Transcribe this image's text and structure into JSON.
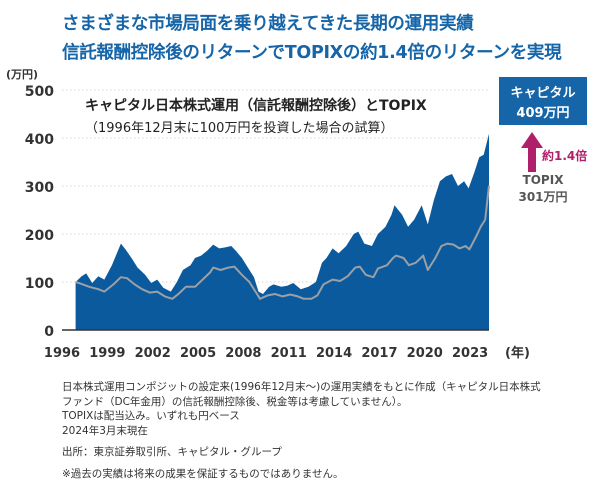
{
  "headline": {
    "line1": "さまざまな市場局面を乗り越えてきた長期の運用実績",
    "line2": "信託報酬控除後のリターンでTOPIXの約1.4倍のリターンを実現"
  },
  "chart_data": {
    "type": "area",
    "title": "キャピタル日本株式運用（信託報酬控除後）とTOPIX",
    "subtitle": "（1996年12月末に100万円を投資した場合の試算）",
    "ylabel": "(万円)",
    "xlabel": "(年)",
    "ylim": [
      0,
      500
    ],
    "yticks": [
      0,
      100,
      200,
      300,
      400,
      500
    ],
    "xlim": [
      1996,
      2024.25
    ],
    "xticks": [
      1996,
      1999,
      2002,
      2005,
      2008,
      2011,
      2014,
      2017,
      2020,
      2023
    ],
    "grid": "horizontal-dotted",
    "series": [
      {
        "name": "キャピタル",
        "render": "filled-area",
        "color": "#0b5a9e",
        "points": [
          [
            1996.9,
            100
          ],
          [
            1997.3,
            112
          ],
          [
            1997.6,
            118
          ],
          [
            1998.0,
            98
          ],
          [
            1998.4,
            112
          ],
          [
            1998.8,
            105
          ],
          [
            1999.3,
            135
          ],
          [
            1999.7,
            165
          ],
          [
            1999.9,
            180
          ],
          [
            2000.2,
            168
          ],
          [
            2000.6,
            150
          ],
          [
            2001.0,
            130
          ],
          [
            2001.5,
            115
          ],
          [
            2001.9,
            98
          ],
          [
            2002.3,
            105
          ],
          [
            2002.7,
            88
          ],
          [
            2003.2,
            80
          ],
          [
            2003.6,
            100
          ],
          [
            2004.0,
            125
          ],
          [
            2004.5,
            135
          ],
          [
            2004.8,
            150
          ],
          [
            2005.2,
            155
          ],
          [
            2005.6,
            165
          ],
          [
            2006.0,
            178
          ],
          [
            2006.4,
            170
          ],
          [
            2006.8,
            172
          ],
          [
            2007.2,
            175
          ],
          [
            2007.5,
            165
          ],
          [
            2007.9,
            150
          ],
          [
            2008.3,
            130
          ],
          [
            2008.7,
            110
          ],
          [
            2009.0,
            80
          ],
          [
            2009.3,
            75
          ],
          [
            2009.7,
            90
          ],
          [
            2010.0,
            95
          ],
          [
            2010.5,
            90
          ],
          [
            2010.9,
            92
          ],
          [
            2011.3,
            98
          ],
          [
            2011.8,
            85
          ],
          [
            2012.3,
            90
          ],
          [
            2012.8,
            100
          ],
          [
            2013.2,
            140
          ],
          [
            2013.5,
            150
          ],
          [
            2013.9,
            170
          ],
          [
            2014.3,
            160
          ],
          [
            2014.8,
            175
          ],
          [
            2015.3,
            200
          ],
          [
            2015.6,
            205
          ],
          [
            2016.0,
            180
          ],
          [
            2016.5,
            175
          ],
          [
            2016.9,
            200
          ],
          [
            2017.4,
            215
          ],
          [
            2017.8,
            240
          ],
          [
            2018.0,
            260
          ],
          [
            2018.5,
            240
          ],
          [
            2018.9,
            215
          ],
          [
            2019.3,
            230
          ],
          [
            2019.8,
            260
          ],
          [
            2020.2,
            220
          ],
          [
            2020.6,
            270
          ],
          [
            2021.0,
            310
          ],
          [
            2021.4,
            320
          ],
          [
            2021.8,
            325
          ],
          [
            2022.2,
            300
          ],
          [
            2022.6,
            310
          ],
          [
            2022.9,
            295
          ],
          [
            2023.3,
            330
          ],
          [
            2023.6,
            360
          ],
          [
            2023.9,
            365
          ],
          [
            2024.25,
            409
          ]
        ]
      },
      {
        "name": "TOPIX",
        "render": "line",
        "color": "#9aa0a6",
        "points": [
          [
            1996.9,
            100
          ],
          [
            1997.3,
            96
          ],
          [
            1997.8,
            90
          ],
          [
            1998.4,
            85
          ],
          [
            1998.8,
            80
          ],
          [
            1999.4,
            95
          ],
          [
            1999.9,
            110
          ],
          [
            2000.3,
            108
          ],
          [
            2000.8,
            95
          ],
          [
            2001.3,
            85
          ],
          [
            2001.8,
            78
          ],
          [
            2002.3,
            80
          ],
          [
            2002.8,
            70
          ],
          [
            2003.3,
            65
          ],
          [
            2003.7,
            75
          ],
          [
            2004.2,
            90
          ],
          [
            2004.8,
            90
          ],
          [
            2005.3,
            105
          ],
          [
            2005.8,
            120
          ],
          [
            2006.0,
            130
          ],
          [
            2006.5,
            125
          ],
          [
            2007.0,
            130
          ],
          [
            2007.4,
            132
          ],
          [
            2007.9,
            115
          ],
          [
            2008.4,
            100
          ],
          [
            2008.8,
            80
          ],
          [
            2009.1,
            65
          ],
          [
            2009.6,
            72
          ],
          [
            2010.1,
            75
          ],
          [
            2010.6,
            70
          ],
          [
            2011.1,
            74
          ],
          [
            2011.6,
            70
          ],
          [
            2012.0,
            65
          ],
          [
            2012.5,
            65
          ],
          [
            2012.9,
            72
          ],
          [
            2013.3,
            95
          ],
          [
            2013.9,
            105
          ],
          [
            2014.4,
            102
          ],
          [
            2014.9,
            112
          ],
          [
            2015.4,
            130
          ],
          [
            2015.7,
            132
          ],
          [
            2016.1,
            115
          ],
          [
            2016.6,
            110
          ],
          [
            2016.9,
            128
          ],
          [
            2017.5,
            135
          ],
          [
            2017.9,
            150
          ],
          [
            2018.1,
            155
          ],
          [
            2018.6,
            150
          ],
          [
            2018.95,
            135
          ],
          [
            2019.4,
            140
          ],
          [
            2019.9,
            155
          ],
          [
            2020.2,
            125
          ],
          [
            2020.7,
            150
          ],
          [
            2021.1,
            175
          ],
          [
            2021.5,
            180
          ],
          [
            2021.9,
            178
          ],
          [
            2022.3,
            170
          ],
          [
            2022.7,
            175
          ],
          [
            2022.95,
            168
          ],
          [
            2023.4,
            195
          ],
          [
            2023.7,
            215
          ],
          [
            2024.0,
            230
          ],
          [
            2024.25,
            301
          ]
        ]
      }
    ],
    "callouts": {
      "capital_name": "キャピタル",
      "capital_value": "409万円",
      "topix_name": "TOPIX",
      "topix_value": "301万円",
      "ratio": "約1.4倍",
      "capital_box_color": "#1565a8",
      "arrow_color": "#b0206a"
    }
  },
  "notes": {
    "line1": "日本株式運用コンポジットの設定来(1996年12月末〜)の運用実績をもとに作成（キャピタル日本株式",
    "line2": "ファンド（DC年金用）の信託報酬控除後、税金等は考慮していません）。",
    "line3": "TOPIXは配当込み。いずれも円ベース",
    "line4": "2024年3月末現在",
    "source": "出所：東京証券取引所、キャピタル・グループ",
    "disclaimer": "※過去の実績は将来の成果を保証するものではありません。"
  }
}
